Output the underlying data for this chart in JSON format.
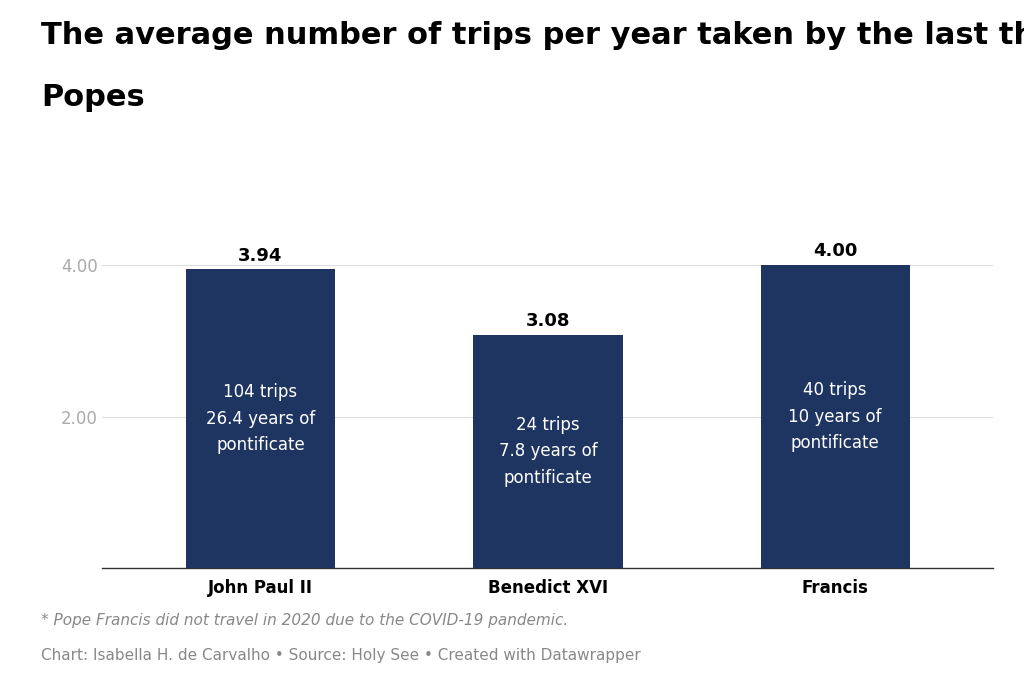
{
  "title_line1": "The average number of trips per year taken by the last three",
  "title_line2": "Popes",
  "categories": [
    "John Paul II",
    "Benedict XVI",
    "Francis"
  ],
  "values": [
    3.94,
    3.08,
    4.0
  ],
  "bar_color": "#1e3561",
  "bar_labels": [
    "3.94",
    "3.08",
    "4.00"
  ],
  "bar_annotations": [
    "104 trips\n26.4 years of\npontificate",
    "24 trips\n7.8 years of\npontificate",
    "40 trips\n10 years of\npontificate"
  ],
  "yticks": [
    2.0,
    4.0
  ],
  "ylim": [
    0,
    4.75
  ],
  "footnote": "* Pope Francis did not travel in 2020 due to the COVID-19 pandemic.",
  "source": "Chart: Isabella H. de Carvalho • Source: Holy See • Created with Datawrapper",
  "background_color": "#ffffff",
  "title_fontsize": 22,
  "bar_label_fontsize": 13,
  "annotation_fontsize": 12,
  "xtick_fontsize": 12,
  "ytick_fontsize": 12,
  "footnote_fontsize": 11,
  "source_fontsize": 11
}
